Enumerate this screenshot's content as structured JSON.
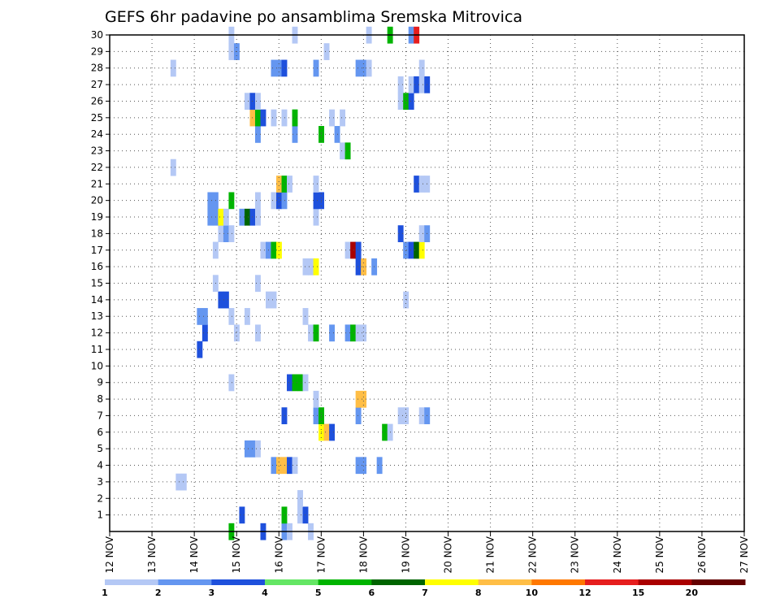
{
  "chart_data": {
    "type": "heatmap",
    "title": "GEFS 6hr padavine po ansamblima Sremska Mitrovica",
    "y_ticks": [
      "1",
      "2",
      "3",
      "4",
      "5",
      "6",
      "7",
      "8",
      "9",
      "10",
      "11",
      "12",
      "13",
      "14",
      "15",
      "16",
      "17",
      "18",
      "19",
      "20",
      "21",
      "22",
      "23",
      "24",
      "25",
      "26",
      "27",
      "28",
      "29",
      "30"
    ],
    "x_ticks": [
      "12 NOV",
      "13 NOV",
      "14 NOV",
      "15 NOV",
      "16 NOV",
      "17 NOV",
      "18 NOV",
      "19 NOV",
      "20 NOV",
      "21 NOV",
      "22 NOV",
      "23 NOV",
      "24 NOV",
      "25 NOV",
      "26 NOV",
      "27 NOV"
    ],
    "xlim": [
      0,
      60
    ],
    "ylim": [
      0,
      30
    ],
    "grid": true,
    "legend": {
      "placement": "bottom",
      "colors": [
        "#b4c8f5",
        "#6496f0",
        "#1e50dc",
        "#64e664",
        "#00b400",
        "#006400",
        "#ffff00",
        "#ffbe46",
        "#ff7800",
        "#e61e1e",
        "#aa0000",
        "#640000"
      ],
      "labels": [
        "1",
        "2",
        "3",
        "4",
        "5",
        "6",
        "7",
        "8",
        "10",
        "12",
        "15",
        "20"
      ]
    },
    "cells": [
      [
        11.5,
        0,
        5
      ],
      [
        14.5,
        0,
        3
      ],
      [
        16.5,
        0,
        2
      ],
      [
        17,
        0,
        1
      ],
      [
        19,
        0,
        1
      ],
      [
        12.5,
        1,
        3
      ],
      [
        16.5,
        1,
        5
      ],
      [
        18,
        1,
        1
      ],
      [
        18.5,
        1,
        3
      ],
      [
        18,
        2,
        1
      ],
      [
        6.5,
        3,
        1
      ],
      [
        7,
        3,
        1
      ],
      [
        15.5,
        4,
        2
      ],
      [
        16,
        4,
        8
      ],
      [
        16.5,
        4,
        8
      ],
      [
        17,
        4,
        3
      ],
      [
        17.5,
        4,
        1
      ],
      [
        23.5,
        4,
        2
      ],
      [
        24,
        4,
        2
      ],
      [
        25.5,
        4,
        2
      ],
      [
        13,
        5,
        2
      ],
      [
        13.5,
        5,
        2
      ],
      [
        14,
        5,
        1
      ],
      [
        20,
        6,
        7
      ],
      [
        20.5,
        6,
        8
      ],
      [
        21,
        6,
        3
      ],
      [
        26,
        6,
        5
      ],
      [
        26.5,
        6,
        1
      ],
      [
        16.5,
        7,
        3
      ],
      [
        19.5,
        7,
        2
      ],
      [
        20,
        7,
        5
      ],
      [
        23.5,
        7,
        2
      ],
      [
        27.5,
        7,
        1
      ],
      [
        28,
        7,
        1
      ],
      [
        29.5,
        7,
        1
      ],
      [
        30,
        7,
        2
      ],
      [
        19.5,
        8,
        1
      ],
      [
        23.5,
        8,
        8
      ],
      [
        24,
        8,
        8
      ],
      [
        11.5,
        9,
        1
      ],
      [
        17,
        9,
        3
      ],
      [
        17.5,
        9,
        5
      ],
      [
        18,
        9,
        5
      ],
      [
        18.5,
        9,
        1
      ],
      [
        8.5,
        11,
        3
      ],
      [
        9,
        12,
        3
      ],
      [
        12,
        12,
        1
      ],
      [
        14,
        12,
        1
      ],
      [
        19,
        12,
        1
      ],
      [
        19.5,
        12,
        5
      ],
      [
        21,
        12,
        2
      ],
      [
        22.5,
        12,
        2
      ],
      [
        23,
        12,
        5
      ],
      [
        23.5,
        12,
        1
      ],
      [
        24,
        12,
        1
      ],
      [
        8.5,
        13,
        2
      ],
      [
        9,
        13,
        2
      ],
      [
        11.5,
        13,
        1
      ],
      [
        13,
        13,
        1
      ],
      [
        18.5,
        13,
        1
      ],
      [
        10.5,
        14,
        3
      ],
      [
        11,
        14,
        3
      ],
      [
        15,
        14,
        1
      ],
      [
        15.5,
        14,
        1
      ],
      [
        28,
        14,
        1
      ],
      [
        10,
        15,
        1
      ],
      [
        14,
        15,
        1
      ],
      [
        18.5,
        16,
        1
      ],
      [
        19,
        16,
        1
      ],
      [
        19.5,
        16,
        7
      ],
      [
        23.5,
        16,
        3
      ],
      [
        24,
        16,
        8
      ],
      [
        25,
        16,
        2
      ],
      [
        10,
        17,
        1
      ],
      [
        14.5,
        17,
        1
      ],
      [
        15,
        17,
        2
      ],
      [
        15.5,
        17,
        5
      ],
      [
        16,
        17,
        7
      ],
      [
        22.5,
        17,
        1
      ],
      [
        23,
        17,
        15
      ],
      [
        23.5,
        17,
        3
      ],
      [
        28,
        17,
        2
      ],
      [
        28.5,
        17,
        3
      ],
      [
        29,
        17,
        6
      ],
      [
        29.5,
        17,
        7
      ],
      [
        10.5,
        18,
        1
      ],
      [
        11,
        18,
        2
      ],
      [
        11.5,
        18,
        1
      ],
      [
        27.5,
        18,
        3
      ],
      [
        29.5,
        18,
        1
      ],
      [
        30,
        18,
        2
      ],
      [
        9.5,
        19,
        2
      ],
      [
        10,
        19,
        2
      ],
      [
        10.5,
        19,
        7
      ],
      [
        11,
        19,
        1
      ],
      [
        12.5,
        19,
        2
      ],
      [
        13,
        19,
        6
      ],
      [
        13.5,
        19,
        3
      ],
      [
        14,
        19,
        1
      ],
      [
        19.5,
        19,
        1
      ],
      [
        9.5,
        20,
        2
      ],
      [
        10,
        20,
        2
      ],
      [
        11.5,
        20,
        5
      ],
      [
        14,
        20,
        1
      ],
      [
        15.5,
        20,
        1
      ],
      [
        16,
        20,
        3
      ],
      [
        16.5,
        20,
        2
      ],
      [
        19.5,
        20,
        3
      ],
      [
        20,
        20,
        3
      ],
      [
        16,
        21,
        8
      ],
      [
        16.5,
        21,
        5
      ],
      [
        17,
        21,
        1
      ],
      [
        19.5,
        21,
        1
      ],
      [
        29,
        21,
        3
      ],
      [
        29.5,
        21,
        1
      ],
      [
        30,
        21,
        1
      ],
      [
        6,
        22,
        1
      ],
      [
        22,
        23,
        1
      ],
      [
        22.5,
        23,
        5
      ],
      [
        14,
        24,
        2
      ],
      [
        17.5,
        24,
        2
      ],
      [
        20,
        24,
        5
      ],
      [
        21.5,
        24,
        2
      ],
      [
        13.5,
        25,
        8
      ],
      [
        14,
        25,
        5
      ],
      [
        14.5,
        25,
        3
      ],
      [
        15.5,
        25,
        1
      ],
      [
        16.5,
        25,
        1
      ],
      [
        17.5,
        25,
        5
      ],
      [
        21,
        25,
        1
      ],
      [
        22,
        25,
        1
      ],
      [
        13,
        26,
        1
      ],
      [
        13.5,
        26,
        3
      ],
      [
        14,
        26,
        1
      ],
      [
        27.5,
        26,
        1
      ],
      [
        28,
        26,
        5
      ],
      [
        28.5,
        26,
        3
      ],
      [
        27.5,
        27,
        1
      ],
      [
        28.5,
        27,
        1
      ],
      [
        29,
        27,
        3
      ],
      [
        29.5,
        27,
        1
      ],
      [
        30,
        27,
        3
      ],
      [
        6,
        28,
        1
      ],
      [
        15.5,
        28,
        2
      ],
      [
        16,
        28,
        2
      ],
      [
        16.5,
        28,
        3
      ],
      [
        19.5,
        28,
        2
      ],
      [
        23.5,
        28,
        2
      ],
      [
        24,
        28,
        2
      ],
      [
        24.5,
        28,
        1
      ],
      [
        29.5,
        28,
        1
      ],
      [
        11.5,
        29,
        1
      ],
      [
        12,
        29,
        2
      ],
      [
        20.5,
        29,
        1
      ],
      [
        11.5,
        30,
        1
      ],
      [
        17.5,
        30,
        1
      ],
      [
        24.5,
        30,
        1
      ],
      [
        26.5,
        30,
        5
      ],
      [
        28.5,
        30,
        2
      ],
      [
        29,
        30,
        12
      ]
    ]
  }
}
